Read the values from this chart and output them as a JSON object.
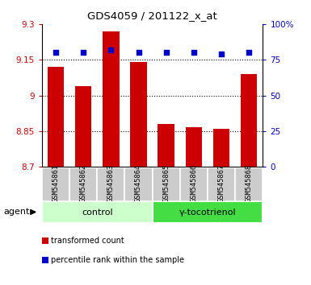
{
  "title": "GDS4059 / 201122_x_at",
  "samples": [
    "GSM545861",
    "GSM545862",
    "GSM545863",
    "GSM545864",
    "GSM545865",
    "GSM545866",
    "GSM545867",
    "GSM545868"
  ],
  "bar_values": [
    9.12,
    9.04,
    9.27,
    9.14,
    8.88,
    8.865,
    8.86,
    9.09
  ],
  "percentile_values": [
    80,
    80,
    82,
    80,
    80,
    80,
    79,
    80
  ],
  "ymin": 8.7,
  "ymax": 9.3,
  "yticks": [
    8.7,
    8.85,
    9.0,
    9.15,
    9.3
  ],
  "ytick_labels": [
    "8.7",
    "8.85",
    "9",
    "9.15",
    "9.3"
  ],
  "right_yticks": [
    0,
    25,
    50,
    75,
    100
  ],
  "right_ytick_labels": [
    "0",
    "25",
    "50",
    "75",
    "100%"
  ],
  "bar_color": "#cc0000",
  "dot_color": "#0000cc",
  "bar_width": 0.6,
  "groups": [
    {
      "label": "control",
      "indices": [
        0,
        1,
        2,
        3
      ],
      "color": "#ccffcc"
    },
    {
      "label": "γ-tocotrienol",
      "indices": [
        4,
        5,
        6,
        7
      ],
      "color": "#44dd44"
    }
  ],
  "agent_label": "agent",
  "legend_items": [
    {
      "color": "#cc0000",
      "label": "transformed count"
    },
    {
      "color": "#0000cc",
      "label": "percentile rank within the sample"
    }
  ],
  "tick_label_bg": "#cccccc",
  "left_tick_color": "#cc0000",
  "right_tick_color": "#0000cc",
  "grid_linestyle": ":",
  "grid_linewidth": 0.8
}
